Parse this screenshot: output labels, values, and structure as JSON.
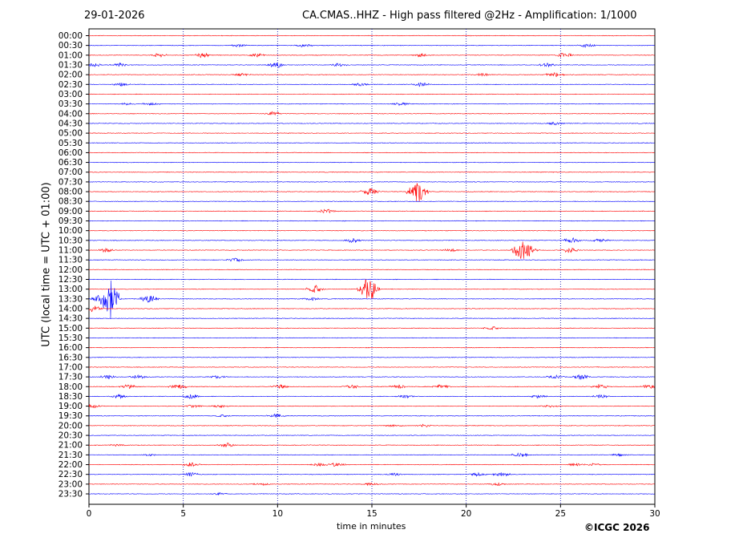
{
  "header": {
    "date": "29-01-2026",
    "title": "CA.CMAS..HHZ - High pass filtered @2Hz - Amplification: 1/1000"
  },
  "footer": {
    "copyright": "©ICGC 2026"
  },
  "colors": {
    "red_trace": "#ff0000",
    "blue_trace": "#0000ff",
    "grid": "#0000aa"
  },
  "chart_data": {
    "type": "line",
    "title": "CA.CMAS..HHZ - High pass filtered @2Hz - Amplification: 1/1000",
    "xlabel": "time in minutes",
    "ylabel": "UTC (local time = UTC + 01:00)",
    "xlim": [
      0,
      30
    ],
    "xticks": [
      0,
      5,
      10,
      15,
      20,
      25,
      30
    ],
    "vertical_grid_minutes": [
      5,
      10,
      15,
      20,
      25
    ],
    "rows": [
      "00:00",
      "00:30",
      "01:00",
      "01:30",
      "02:00",
      "02:30",
      "03:00",
      "03:30",
      "04:00",
      "04:30",
      "05:00",
      "05:30",
      "06:00",
      "06:30",
      "07:00",
      "07:30",
      "08:00",
      "08:30",
      "09:00",
      "09:30",
      "10:00",
      "10:30",
      "11:00",
      "11:30",
      "12:00",
      "12:30",
      "13:00",
      "13:30",
      "14:00",
      "14:30",
      "15:00",
      "15:30",
      "16:00",
      "16:30",
      "17:00",
      "17:30",
      "18:00",
      "18:30",
      "19:00",
      "19:30",
      "20:00",
      "20:30",
      "21:00",
      "21:30",
      "22:00",
      "22:30",
      "23:00",
      "23:30"
    ],
    "row_colors": [
      "red",
      "blue"
    ],
    "events": [
      {
        "row": "01:00",
        "minutes": [
          3.7,
          6.0,
          8.9,
          17.6,
          25.2
        ],
        "amp": [
          0.2,
          0.25,
          0.2,
          0.2,
          0.25
        ]
      },
      {
        "row": "00:30",
        "minutes": [
          7.9,
          11.4,
          26.4
        ],
        "amp": [
          0.15,
          0.15,
          0.2
        ]
      },
      {
        "row": "01:30",
        "minutes": [
          0.2,
          1.6,
          9.9,
          13.2,
          24.3
        ],
        "amp": [
          0.2,
          0.2,
          0.3,
          0.15,
          0.2
        ]
      },
      {
        "row": "02:00",
        "minutes": [
          8.1,
          20.9,
          24.7
        ],
        "amp": [
          0.15,
          0.15,
          0.25
        ]
      },
      {
        "row": "02:30",
        "minutes": [
          1.7,
          14.4,
          17.6
        ],
        "amp": [
          0.15,
          0.15,
          0.2
        ]
      },
      {
        "row": "03:30",
        "minutes": [
          2.0,
          3.3,
          16.5
        ],
        "amp": [
          0.1,
          0.1,
          0.15
        ]
      },
      {
        "row": "04:00",
        "minutes": [
          9.8
        ],
        "amp": [
          0.2
        ]
      },
      {
        "row": "04:30",
        "minutes": [
          24.7
        ],
        "amp": [
          0.15
        ]
      },
      {
        "row": "08:00",
        "minutes": [
          14.9,
          17.2,
          17.5
        ],
        "amp": [
          0.45,
          0.5,
          1.0
        ]
      },
      {
        "row": "09:00",
        "minutes": [
          12.6
        ],
        "amp": [
          0.2
        ]
      },
      {
        "row": "10:30",
        "minutes": [
          14.0,
          25.6,
          27.1
        ],
        "amp": [
          0.25,
          0.25,
          0.15
        ]
      },
      {
        "row": "11:00",
        "minutes": [
          0.9,
          19.2,
          22.9,
          23.3,
          25.5
        ],
        "amp": [
          0.2,
          0.15,
          1.0,
          0.5,
          0.3
        ]
      },
      {
        "row": "11:30",
        "minutes": [
          7.8
        ],
        "amp": [
          0.2
        ]
      },
      {
        "row": "13:00",
        "minutes": [
          12.0,
          14.6,
          14.9
        ],
        "amp": [
          0.4,
          0.5,
          1.0
        ]
      },
      {
        "row": "13:30",
        "minutes": [
          0.6,
          1.1,
          3.2,
          11.8
        ],
        "amp": [
          0.5,
          2.2,
          0.4,
          0.15
        ]
      },
      {
        "row": "14:00",
        "minutes": [
          0.3
        ],
        "amp": [
          0.4
        ]
      },
      {
        "row": "15:00",
        "minutes": [
          21.4
        ],
        "amp": [
          0.15
        ]
      },
      {
        "row": "17:30",
        "minutes": [
          1.0,
          2.6,
          6.8,
          24.7,
          26.1
        ],
        "amp": [
          0.2,
          0.2,
          0.15,
          0.15,
          0.3
        ]
      },
      {
        "row": "18:00",
        "minutes": [
          2.1,
          4.7,
          10.1,
          13.9,
          16.4,
          18.7,
          27.1,
          29.7
        ],
        "amp": [
          0.2,
          0.25,
          0.2,
          0.25,
          0.2,
          0.2,
          0.25,
          0.2
        ]
      },
      {
        "row": "18:30",
        "minutes": [
          1.6,
          5.4,
          16.8,
          23.8,
          27.1
        ],
        "amp": [
          0.2,
          0.25,
          0.15,
          0.15,
          0.2
        ]
      },
      {
        "row": "19:00",
        "minutes": [
          0.2,
          5.5,
          6.9,
          24.4
        ],
        "amp": [
          0.15,
          0.15,
          0.15,
          0.1
        ]
      },
      {
        "row": "19:30",
        "minutes": [
          7.1,
          9.9
        ],
        "amp": [
          0.1,
          0.2
        ]
      },
      {
        "row": "20:00",
        "minutes": [
          16.2,
          17.8
        ],
        "amp": [
          0.1,
          0.15
        ]
      },
      {
        "row": "21:00",
        "minutes": [
          1.5,
          7.3
        ],
        "amp": [
          0.1,
          0.25
        ]
      },
      {
        "row": "21:30",
        "minutes": [
          3.2,
          22.9,
          28.1
        ],
        "amp": [
          0.1,
          0.25,
          0.1
        ]
      },
      {
        "row": "22:00",
        "minutes": [
          5.4,
          12.2,
          13.1,
          25.8,
          26.8
        ],
        "amp": [
          0.2,
          0.15,
          0.2,
          0.15,
          0.15
        ]
      },
      {
        "row": "22:30",
        "minutes": [
          5.4,
          16.2,
          20.6,
          21.9
        ],
        "amp": [
          0.25,
          0.15,
          0.15,
          0.2
        ]
      },
      {
        "row": "23:00",
        "minutes": [
          9.2,
          14.9,
          21.6
        ],
        "amp": [
          0.1,
          0.1,
          0.15
        ]
      },
      {
        "row": "23:30",
        "minutes": [
          6.9
        ],
        "amp": [
          0.1
        ]
      }
    ]
  }
}
